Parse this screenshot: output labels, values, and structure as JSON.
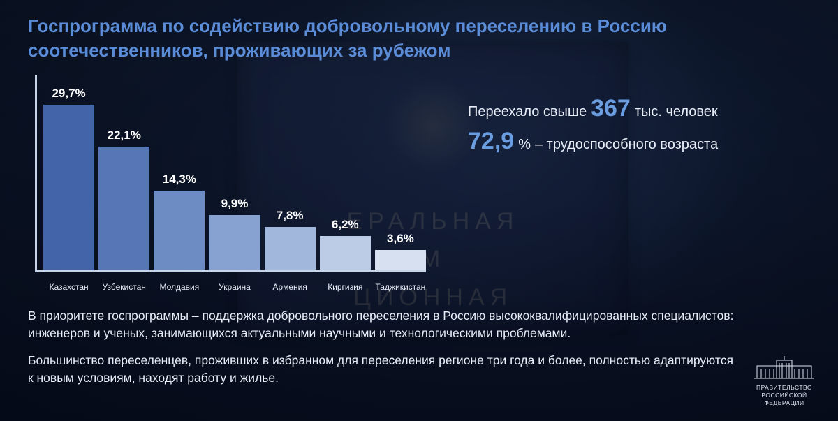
{
  "title": "Госпрограмма по содействию добровольному переселению в Россию соотечественников, проживающих за рубежом",
  "chart": {
    "type": "bar",
    "axis_color": "#c8d4e8",
    "max_value": 31,
    "label_color": "#e8eef8",
    "value_color": "#ffffff",
    "value_fontsize": 17,
    "label_fontsize": 12,
    "bars": [
      {
        "label": "Казахстан",
        "value_text": "29,7%",
        "value": 29.7,
        "color": "#4364a8"
      },
      {
        "label": "Узбекистан",
        "value_text": "22,1%",
        "value": 22.1,
        "color": "#5676b6"
      },
      {
        "label": "Молдавия",
        "value_text": "14,3%",
        "value": 14.3,
        "color": "#6d8cc4"
      },
      {
        "label": "Украина",
        "value_text": "9,9%",
        "value": 9.9,
        "color": "#87a2d1"
      },
      {
        "label": "Армения",
        "value_text": "7,8%",
        "value": 7.8,
        "color": "#a1b7db"
      },
      {
        "label": "Киргизия",
        "value_text": "6,2%",
        "value": 6.2,
        "color": "#bccbe6"
      },
      {
        "label": "Таджикистан",
        "value_text": "3,6%",
        "value": 3.6,
        "color": "#d7e0f0"
      }
    ]
  },
  "stats": {
    "line1_pre": "Переехало свыше",
    "line1_big": "367",
    "line1_post": "тыс. человек",
    "line2_big": "72,9",
    "line2_pct": "%",
    "line2_post": "– трудоспособного возраста",
    "big_color": "#6a9ce0",
    "text_color": "#e8eef8"
  },
  "paragraph1": "В приоритете госпрограммы – поддержка добровольного переселения в Россию высококвалифицированных специалистов: инженеров и ученых, занимающихся актуальными научными и технологическими проблемами.",
  "paragraph2": "Большинство переселенцев, проживших в избранном для переселения регионе три года и более, полностью адаптируются к новым условиям, находят работу и жилье.",
  "logo": {
    "line1": "ПРАВИТЕЛЬСТВО",
    "line2": "РОССИЙСКОЙ",
    "line3": "ФЕДЕРАЦИИ",
    "color": "#dfe6f2"
  },
  "plaque_hint": {
    "l1": "ЕРАЛЬНАЯ",
    "l2": "М",
    "l3": "ЦИОННАЯ"
  }
}
